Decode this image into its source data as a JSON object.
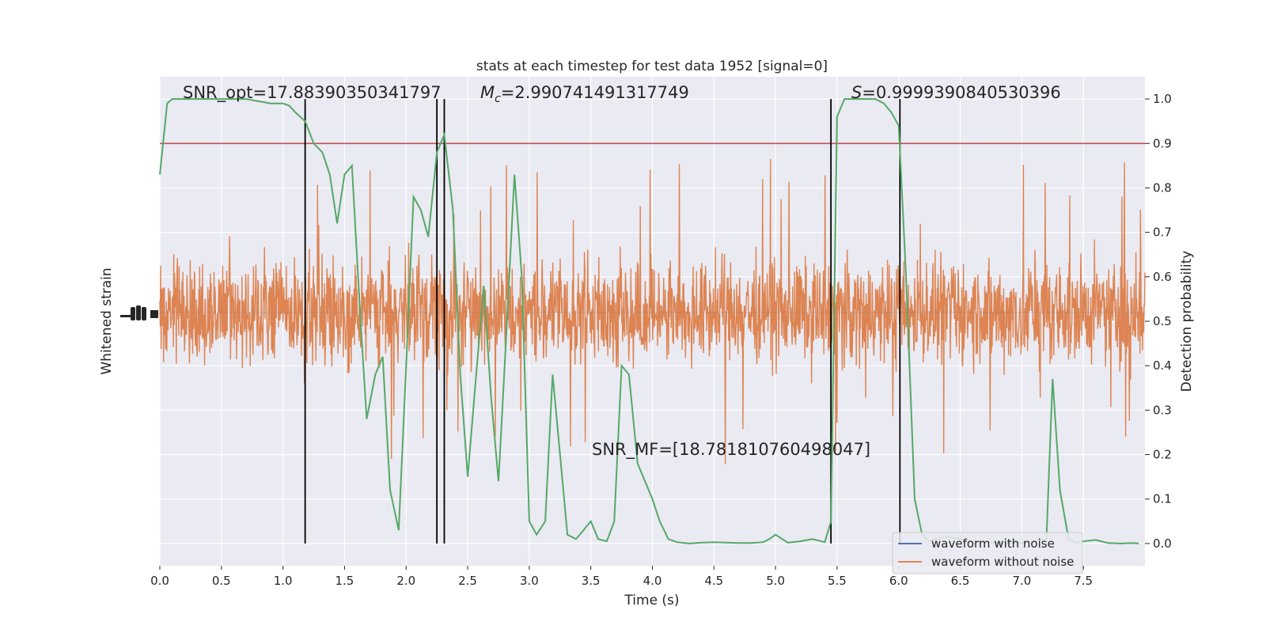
{
  "chart_data": {
    "type": "line",
    "title": "stats at each timestep for test data 1952 [signal=0]",
    "xlabel": "Time (s)",
    "ylabel_left": "Whitened strain",
    "ylabel_right": "Detection probability",
    "xlim": [
      0.0,
      8.0
    ],
    "ylim_right": [
      -0.05,
      1.05
    ],
    "x_ticks": [
      "0.0",
      "0.5",
      "1.0",
      "1.5",
      "2.0",
      "2.5",
      "3.0",
      "3.5",
      "4.0",
      "4.5",
      "5.0",
      "5.5",
      "6.0",
      "6.5",
      "7.0",
      "7.5"
    ],
    "x_tick_values": [
      0.0,
      0.5,
      1.0,
      1.5,
      2.0,
      2.5,
      3.0,
      3.5,
      4.0,
      4.5,
      5.0,
      5.5,
      6.0,
      6.5,
      7.0,
      7.5
    ],
    "y_right_ticks": [
      "0.0",
      "0.1",
      "0.2",
      "0.3",
      "0.4",
      "0.5",
      "0.6",
      "0.7",
      "0.8",
      "0.9",
      "1.0"
    ],
    "y_right_tick_values": [
      0.0,
      0.1,
      0.2,
      0.3,
      0.4,
      0.5,
      0.6,
      0.7,
      0.8,
      0.9,
      1.0
    ],
    "threshold": 0.9,
    "vertical_lines": [
      1.18,
      2.25,
      2.31,
      5.45,
      6.01
    ],
    "annotations": {
      "snr_opt": "SNR_opt=17.88390350341797",
      "mc_symbol": "M",
      "mc_sub": "c",
      "mc_value": "=2.990741491317749",
      "s_symbol": "S",
      "s_value": "=0.9999390840530396",
      "snr_mf": "SNR_MF=[18.781810760498047]"
    },
    "legend": {
      "placement": "lower-right",
      "entries": [
        "waveform with noise",
        "waveform without noise"
      ]
    },
    "series": [
      {
        "name": "waveform with noise",
        "kind": "strain",
        "color": "#4c72b0"
      },
      {
        "name": "waveform without noise",
        "kind": "strain",
        "color": "#dd8452"
      },
      {
        "kind": "detection_probability",
        "color": "#55a868",
        "x": [
          0.0,
          0.06,
          0.1,
          0.2,
          0.3,
          0.4,
          0.5,
          0.6,
          0.7,
          0.8,
          0.9,
          1.0,
          1.05,
          1.1,
          1.18,
          1.25,
          1.32,
          1.38,
          1.44,
          1.5,
          1.56,
          1.63,
          1.68,
          1.75,
          1.81,
          1.87,
          1.94,
          2.0,
          2.06,
          2.12,
          2.18,
          2.25,
          2.31,
          2.38,
          2.44,
          2.5,
          2.56,
          2.63,
          2.69,
          2.75,
          2.81,
          2.88,
          2.94,
          3.0,
          3.06,
          3.13,
          3.19,
          3.25,
          3.31,
          3.38,
          3.44,
          3.5,
          3.56,
          3.63,
          3.69,
          3.75,
          3.81,
          3.88,
          3.94,
          4.0,
          4.06,
          4.13,
          4.2,
          4.3,
          4.4,
          4.5,
          4.6,
          4.7,
          4.8,
          4.9,
          4.95,
          5.0,
          5.1,
          5.2,
          5.3,
          5.4,
          5.45,
          5.5,
          5.56,
          5.63,
          5.69,
          5.75,
          5.81,
          5.88,
          5.94,
          6.0,
          6.06,
          6.13,
          6.19,
          6.25,
          6.3,
          6.4,
          6.5,
          6.6,
          6.7,
          6.8,
          6.9,
          7.0,
          7.1,
          7.2,
          7.25,
          7.31,
          7.38,
          7.44,
          7.5,
          7.6,
          7.7,
          7.8,
          7.9,
          7.95
        ],
        "y": [
          0.83,
          0.99,
          1.0,
          1.0,
          1.0,
          1.0,
          1.0,
          1.0,
          1.0,
          0.995,
          0.99,
          0.99,
          0.985,
          0.97,
          0.95,
          0.9,
          0.88,
          0.83,
          0.72,
          0.83,
          0.85,
          0.5,
          0.28,
          0.38,
          0.42,
          0.12,
          0.03,
          0.4,
          0.78,
          0.75,
          0.69,
          0.88,
          0.92,
          0.75,
          0.38,
          0.15,
          0.35,
          0.58,
          0.33,
          0.14,
          0.45,
          0.83,
          0.6,
          0.05,
          0.02,
          0.05,
          0.38,
          0.2,
          0.02,
          0.01,
          0.03,
          0.05,
          0.01,
          0.005,
          0.05,
          0.4,
          0.38,
          0.18,
          0.14,
          0.1,
          0.05,
          0.01,
          0.003,
          0.0,
          0.002,
          0.003,
          0.002,
          0.001,
          0.001,
          0.003,
          0.01,
          0.02,
          0.002,
          0.005,
          0.01,
          0.003,
          0.05,
          0.96,
          1.0,
          1.0,
          1.0,
          1.0,
          1.0,
          0.99,
          0.97,
          0.94,
          0.6,
          0.1,
          0.02,
          0.005,
          0.01,
          0.015,
          0.01,
          0.005,
          0.003,
          0.002,
          0.001,
          0.001,
          0.005,
          0.01,
          0.37,
          0.12,
          0.01,
          0.002,
          0.005,
          0.008,
          0.001,
          0.0,
          0.001,
          0.0
        ]
      }
    ],
    "orange_noise_center": 0.52,
    "orange_noise_envelope": 0.17,
    "orange_spike_extent": 0.35
  }
}
